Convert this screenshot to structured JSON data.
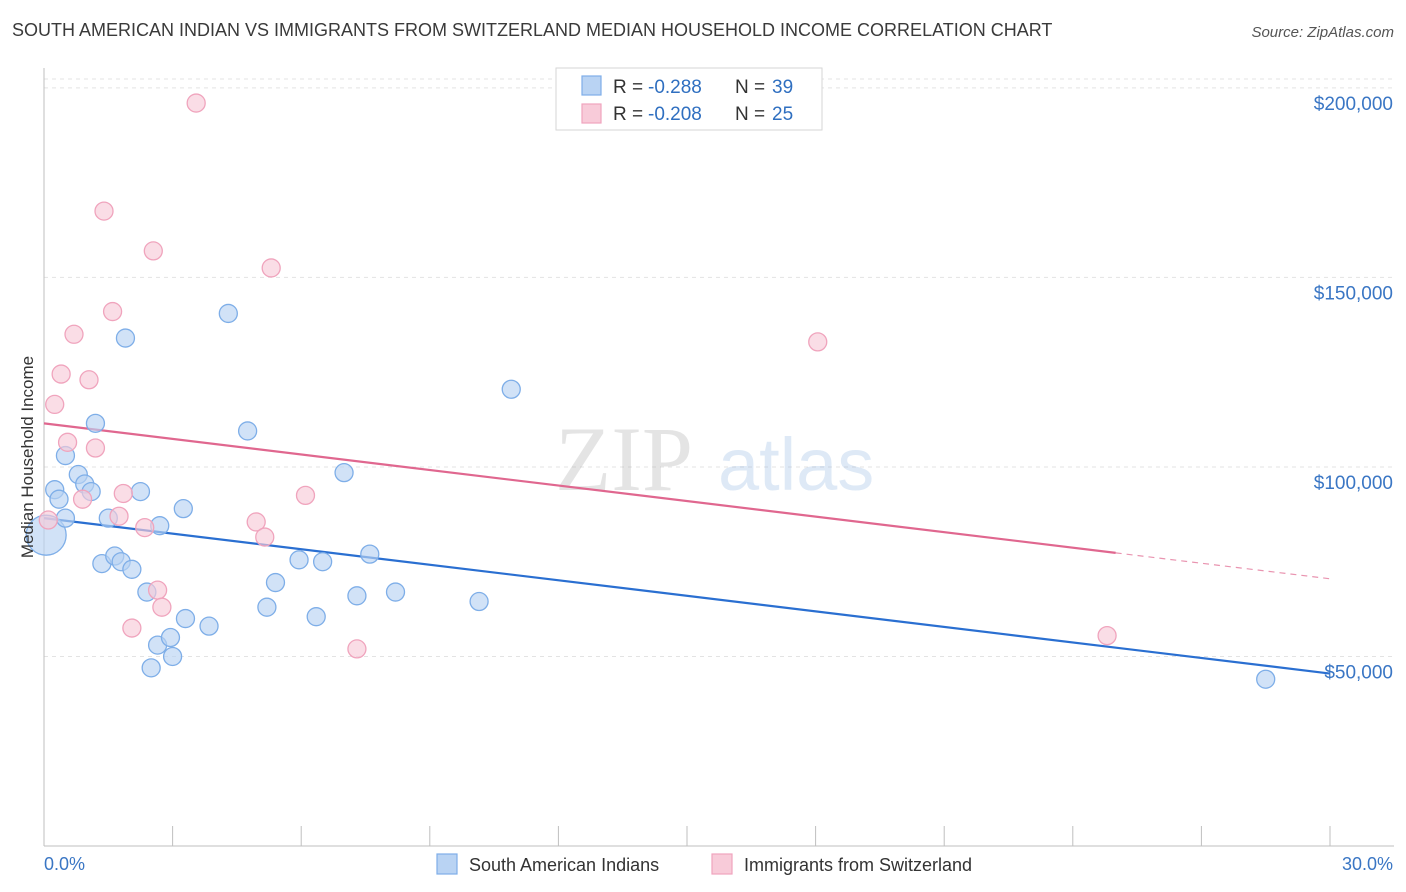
{
  "title": "SOUTH AMERICAN INDIAN VS IMMIGRANTS FROM SWITZERLAND MEDIAN HOUSEHOLD INCOME CORRELATION CHART",
  "source": "Source: ZipAtlas.com",
  "watermark": {
    "zip": "ZIP",
    "atlas": "atlas"
  },
  "chart_data": {
    "type": "scatter",
    "xlabel": "",
    "ylabel": "Median Household Income",
    "xlim": [
      0,
      30
    ],
    "ylim": [
      0,
      210000
    ],
    "x_tick_labels": [
      "0.0%",
      "30.0%"
    ],
    "y_ticks": [
      {
        "value": 50000,
        "label": "$50,000"
      },
      {
        "value": 100000,
        "label": "$100,000"
      },
      {
        "value": 150000,
        "label": "$150,000"
      },
      {
        "value": 200000,
        "label": "$200,000"
      }
    ],
    "legend_stats": [
      {
        "r_label": "R =",
        "r": "-0.288",
        "n_label": "N =",
        "n": "39"
      },
      {
        "r_label": "R =",
        "r": "-0.208",
        "n_label": "N =",
        "n": "25"
      }
    ],
    "series": [
      {
        "name": "South American Indians",
        "color": "#7eaee8",
        "fill": "#b9d3f3",
        "line_color": "#2a6fd1",
        "trend": {
          "x0": 0,
          "y0": 86500,
          "x1": 30,
          "y1": 45500,
          "solid_to": 30
        },
        "points": [
          {
            "x": 0.05,
            "y": 82000,
            "big": true
          },
          {
            "x": 0.25,
            "y": 94000
          },
          {
            "x": 0.35,
            "y": 91500
          },
          {
            "x": 0.5,
            "y": 86500
          },
          {
            "x": 0.5,
            "y": 103000
          },
          {
            "x": 0.8,
            "y": 98000
          },
          {
            "x": 0.95,
            "y": 95500
          },
          {
            "x": 1.1,
            "y": 93500
          },
          {
            "x": 1.2,
            "y": 111500
          },
          {
            "x": 1.35,
            "y": 74500
          },
          {
            "x": 1.5,
            "y": 86500
          },
          {
            "x": 1.65,
            "y": 76500
          },
          {
            "x": 1.8,
            "y": 75000
          },
          {
            "x": 1.9,
            "y": 134000
          },
          {
            "x": 2.05,
            "y": 73000
          },
          {
            "x": 2.25,
            "y": 93500
          },
          {
            "x": 2.4,
            "y": 67000
          },
          {
            "x": 2.5,
            "y": 47000
          },
          {
            "x": 2.65,
            "y": 53000
          },
          {
            "x": 2.7,
            "y": 84500
          },
          {
            "x": 2.95,
            "y": 55000
          },
          {
            "x": 3.0,
            "y": 50000
          },
          {
            "x": 3.25,
            "y": 89000
          },
          {
            "x": 3.3,
            "y": 60000
          },
          {
            "x": 3.85,
            "y": 58000
          },
          {
            "x": 4.3,
            "y": 140500
          },
          {
            "x": 4.75,
            "y": 109500
          },
          {
            "x": 5.2,
            "y": 63000
          },
          {
            "x": 5.4,
            "y": 69500
          },
          {
            "x": 5.95,
            "y": 75500
          },
          {
            "x": 6.35,
            "y": 60500
          },
          {
            "x": 6.5,
            "y": 75000
          },
          {
            "x": 7.0,
            "y": 98500
          },
          {
            "x": 7.3,
            "y": 66000
          },
          {
            "x": 7.6,
            "y": 77000
          },
          {
            "x": 8.2,
            "y": 67000
          },
          {
            "x": 10.15,
            "y": 64500
          },
          {
            "x": 10.9,
            "y": 120500
          },
          {
            "x": 28.5,
            "y": 44000
          }
        ]
      },
      {
        "name": "Immigrants from Switzerland",
        "color": "#f0a4bd",
        "fill": "#f8cbd9",
        "line_color": "#e0678f",
        "trend": {
          "x0": 0,
          "y0": 111500,
          "x1": 30,
          "y1": 70500,
          "solid_to": 25
        },
        "points": [
          {
            "x": 0.1,
            "y": 86000
          },
          {
            "x": 0.25,
            "y": 116500
          },
          {
            "x": 0.4,
            "y": 124500
          },
          {
            "x": 0.55,
            "y": 106500
          },
          {
            "x": 0.7,
            "y": 135000
          },
          {
            "x": 0.9,
            "y": 91500
          },
          {
            "x": 1.05,
            "y": 123000
          },
          {
            "x": 1.2,
            "y": 105000
          },
          {
            "x": 1.4,
            "y": 167500
          },
          {
            "x": 1.6,
            "y": 141000
          },
          {
            "x": 1.75,
            "y": 87000
          },
          {
            "x": 1.85,
            "y": 93000
          },
          {
            "x": 2.05,
            "y": 57500
          },
          {
            "x": 2.35,
            "y": 84000
          },
          {
            "x": 2.55,
            "y": 157000
          },
          {
            "x": 2.65,
            "y": 67500
          },
          {
            "x": 2.75,
            "y": 63000
          },
          {
            "x": 3.55,
            "y": 196000
          },
          {
            "x": 4.95,
            "y": 85500
          },
          {
            "x": 5.15,
            "y": 81500
          },
          {
            "x": 5.3,
            "y": 152500
          },
          {
            "x": 6.1,
            "y": 92500
          },
          {
            "x": 7.3,
            "y": 52000
          },
          {
            "x": 18.05,
            "y": 133000
          },
          {
            "x": 24.8,
            "y": 55500
          }
        ]
      }
    ]
  }
}
